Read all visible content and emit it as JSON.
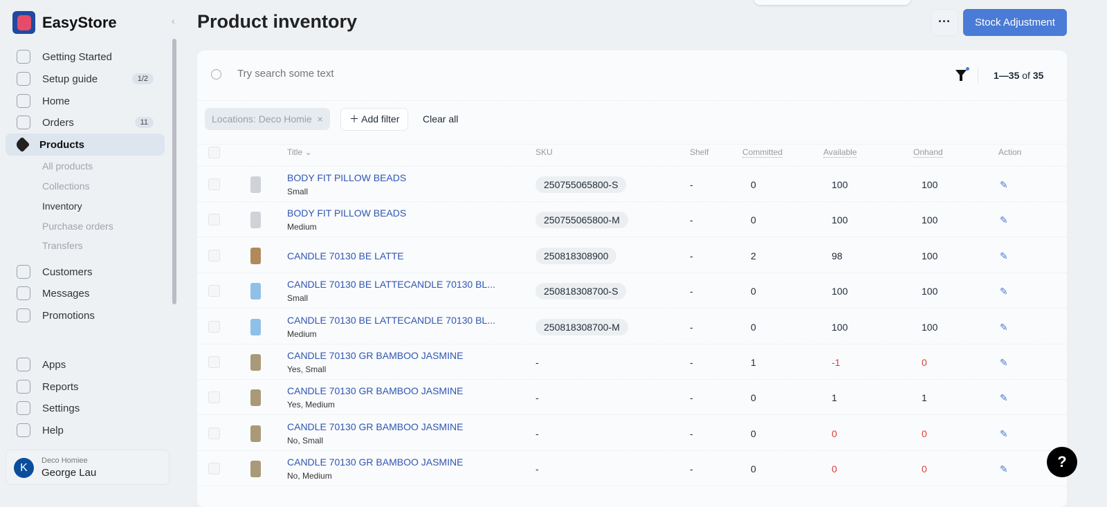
{
  "brand": {
    "name": "EasyStore"
  },
  "sidebar": {
    "items": [
      {
        "label": "Getting Started",
        "icon": "rocket-icon"
      },
      {
        "label": "Setup guide",
        "icon": "checklist-icon",
        "badge": "1/2"
      },
      {
        "label": "Home",
        "icon": "home-icon"
      },
      {
        "label": "Orders",
        "icon": "inbox-icon",
        "badge": "11"
      },
      {
        "label": "Products",
        "icon": "tag-icon",
        "active": true
      },
      {
        "label": "Customers",
        "icon": "user-icon"
      },
      {
        "label": "Messages",
        "icon": "chat-icon"
      },
      {
        "label": "Promotions",
        "icon": "discount-icon"
      },
      {
        "label": "Apps",
        "icon": "apps-icon"
      },
      {
        "label": "Reports",
        "icon": "bar-chart-icon"
      },
      {
        "label": "Settings",
        "icon": "gear-icon"
      },
      {
        "label": "Help",
        "icon": "help-circle-icon"
      }
    ],
    "sub_items": [
      "All products",
      "Collections",
      "Inventory",
      "Purchase orders",
      "Transfers"
    ],
    "current_sub": "Inventory"
  },
  "user": {
    "initial": "K",
    "store": "Deco Homiee",
    "name": "George Lau"
  },
  "header": {
    "title": "Product inventory",
    "more_label": "···",
    "primary_label": "Stock Adjustment"
  },
  "toolbar": {
    "search_placeholder": "Try search some text",
    "count_range": "1—35",
    "count_of": "of",
    "count_total": "35"
  },
  "filters": {
    "chip": "Locations: Deco Homie",
    "add_filter": "Add filter",
    "clear_all": "Clear all"
  },
  "table": {
    "columns": [
      "Title",
      "SKU",
      "Shelf",
      "Committed",
      "Available",
      "Onhand",
      "Action"
    ],
    "rows": [
      {
        "title": "BODY FIT PILLOW BEADS",
        "variant": "Small",
        "sku": "250755065800-S",
        "shelf": "-",
        "committed": "0",
        "available": "100",
        "onhand": "100",
        "thumb": "#cfd2d6"
      },
      {
        "title": "BODY FIT PILLOW BEADS",
        "variant": "Medium",
        "sku": "250755065800-M",
        "shelf": "-",
        "committed": "0",
        "available": "100",
        "onhand": "100",
        "thumb": "#cfd2d6"
      },
      {
        "title": "CANDLE 70130 BE LATTE",
        "variant": "",
        "sku": "250818308900",
        "shelf": "-",
        "committed": "2",
        "available": "98",
        "onhand": "100",
        "thumb": "#b08a5a"
      },
      {
        "title": "CANDLE 70130 BE LATTECANDLE 70130 BL...",
        "variant": "Small",
        "sku": "250818308700-S",
        "shelf": "-",
        "committed": "0",
        "available": "100",
        "onhand": "100",
        "thumb": "#8fc0e8"
      },
      {
        "title": "CANDLE 70130 BE LATTECANDLE 70130 BL...",
        "variant": "Medium",
        "sku": "250818308700-M",
        "shelf": "-",
        "committed": "0",
        "available": "100",
        "onhand": "100",
        "thumb": "#8fc0e8"
      },
      {
        "title": "CANDLE 70130 GR BAMBOO JASMINE",
        "variant": "Yes, Small",
        "sku": "-",
        "shelf": "-",
        "committed": "1",
        "available": "-1",
        "onhand": "0",
        "thumb": "#a89a78",
        "neg_available": true,
        "neg_onhand": true
      },
      {
        "title": "CANDLE 70130 GR BAMBOO JASMINE",
        "variant": "Yes, Medium",
        "sku": "-",
        "shelf": "-",
        "committed": "0",
        "available": "1",
        "onhand": "1",
        "thumb": "#a89a78"
      },
      {
        "title": "CANDLE 70130 GR BAMBOO JASMINE",
        "variant": "No, Small",
        "sku": "-",
        "shelf": "-",
        "committed": "0",
        "available": "0",
        "onhand": "0",
        "thumb": "#a89a78",
        "neg_available": true,
        "neg_onhand": true
      },
      {
        "title": "CANDLE 70130 GR BAMBOO JASMINE",
        "variant": "No, Medium",
        "sku": "-",
        "shelf": "-",
        "committed": "0",
        "available": "0",
        "onhand": "0",
        "thumb": "#a89a78",
        "neg_available": true,
        "neg_onhand": true
      }
    ]
  },
  "help_button": "?",
  "colors": {
    "accent": "#4a7bd6",
    "link": "#2f55b4",
    "negative": "#e03b3b"
  }
}
